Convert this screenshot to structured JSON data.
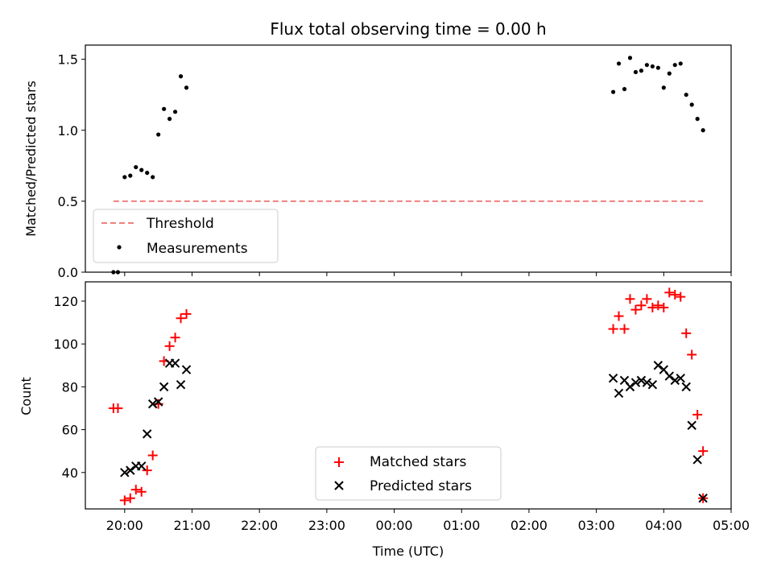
{
  "chart_data": [
    {
      "type": "scatter",
      "title": "Flux total observing time = 0.00 h",
      "xlabel": "",
      "ylabel": "Matched/Predicted stars",
      "xlim": [
        "19:25",
        "05:00"
      ],
      "ylim": [
        0,
        1.6
      ],
      "yticks": [
        0.0,
        0.5,
        1.0,
        1.5
      ],
      "ytick_labels": [
        "0.0",
        "0.5",
        "1.0",
        "1.5"
      ],
      "legend": {
        "position": "lower-left",
        "entries": [
          "Threshold",
          "Measurements"
        ]
      },
      "colors": {
        "threshold": "#f08080",
        "measurements": "#000000"
      },
      "threshold": {
        "name": "Threshold",
        "y": 0.5,
        "x_start": "19:50",
        "x_end": "04:35"
      },
      "measurements": {
        "name": "Measurements",
        "x": [
          "19:50",
          "19:54",
          "20:00",
          "20:05",
          "20:10",
          "20:15",
          "20:20",
          "20:25",
          "20:30",
          "20:35",
          "20:40",
          "20:45",
          "20:50",
          "20:55",
          "03:15",
          "03:20",
          "03:25",
          "03:30",
          "03:35",
          "03:40",
          "03:45",
          "03:50",
          "03:55",
          "04:00",
          "04:05",
          "04:10",
          "04:15",
          "04:20",
          "04:25",
          "04:30",
          "04:35"
        ],
        "y": [
          0.0,
          0.0,
          0.67,
          0.68,
          0.74,
          0.72,
          0.7,
          0.67,
          0.97,
          1.15,
          1.08,
          1.13,
          1.38,
          1.3,
          1.27,
          1.47,
          1.29,
          1.51,
          1.41,
          1.42,
          1.46,
          1.45,
          1.44,
          1.3,
          1.4,
          1.46,
          1.47,
          1.25,
          1.18,
          1.08,
          1.0
        ]
      }
    },
    {
      "type": "scatter",
      "title": "",
      "xlabel": "Time (UTC)",
      "ylabel": "Count",
      "xlim": [
        "19:25",
        "05:00"
      ],
      "xticks": [
        "20:00",
        "21:00",
        "22:00",
        "23:00",
        "00:00",
        "01:00",
        "02:00",
        "03:00",
        "04:00",
        "05:00"
      ],
      "ylim": [
        23,
        129
      ],
      "yticks": [
        40,
        60,
        80,
        100,
        120
      ],
      "legend": {
        "position": "lower-center",
        "entries": [
          "Matched stars",
          "Predicted stars"
        ]
      },
      "colors": {
        "matched": "#ff0000",
        "predicted": "#000000"
      },
      "series": [
        {
          "name": "Matched stars",
          "marker": "+",
          "x": [
            "19:50",
            "19:54",
            "20:00",
            "20:05",
            "20:10",
            "20:15",
            "20:20",
            "20:25",
            "20:30",
            "20:35",
            "20:40",
            "20:45",
            "20:50",
            "20:55",
            "03:15",
            "03:20",
            "03:25",
            "03:30",
            "03:35",
            "03:40",
            "03:45",
            "03:50",
            "03:55",
            "04:00",
            "04:05",
            "04:10",
            "04:15",
            "04:20",
            "04:25",
            "04:30",
            "04:35"
          ],
          "y": [
            70,
            70,
            27,
            28,
            32,
            31,
            41,
            48,
            72,
            92,
            99,
            103,
            112,
            114,
            107,
            113,
            107,
            121,
            116,
            118,
            121,
            117,
            118,
            117,
            124,
            123,
            122,
            105,
            95,
            67,
            50
          ]
        },
        {
          "name": "Predicted stars",
          "marker": "x",
          "x": [
            "20:00",
            "20:05",
            "20:10",
            "20:15",
            "20:20",
            "20:25",
            "20:30",
            "20:35",
            "20:40",
            "20:45",
            "20:50",
            "20:55",
            "03:15",
            "03:20",
            "03:25",
            "03:30",
            "03:35",
            "03:40",
            "03:45",
            "03:50",
            "03:55",
            "04:00",
            "04:05",
            "04:10",
            "04:15",
            "04:20",
            "04:25",
            "04:30",
            "04:35"
          ],
          "y": [
            40,
            41,
            43,
            43,
            58,
            72,
            73,
            80,
            91,
            91,
            81,
            88,
            84,
            77,
            83,
            80,
            82,
            83,
            82,
            81,
            90,
            88,
            85,
            83,
            84,
            80,
            62,
            46,
            28
          ]
        }
      ],
      "extra_matched": {
        "x": [
          "04:35"
        ],
        "y": [
          28
        ]
      }
    }
  ]
}
